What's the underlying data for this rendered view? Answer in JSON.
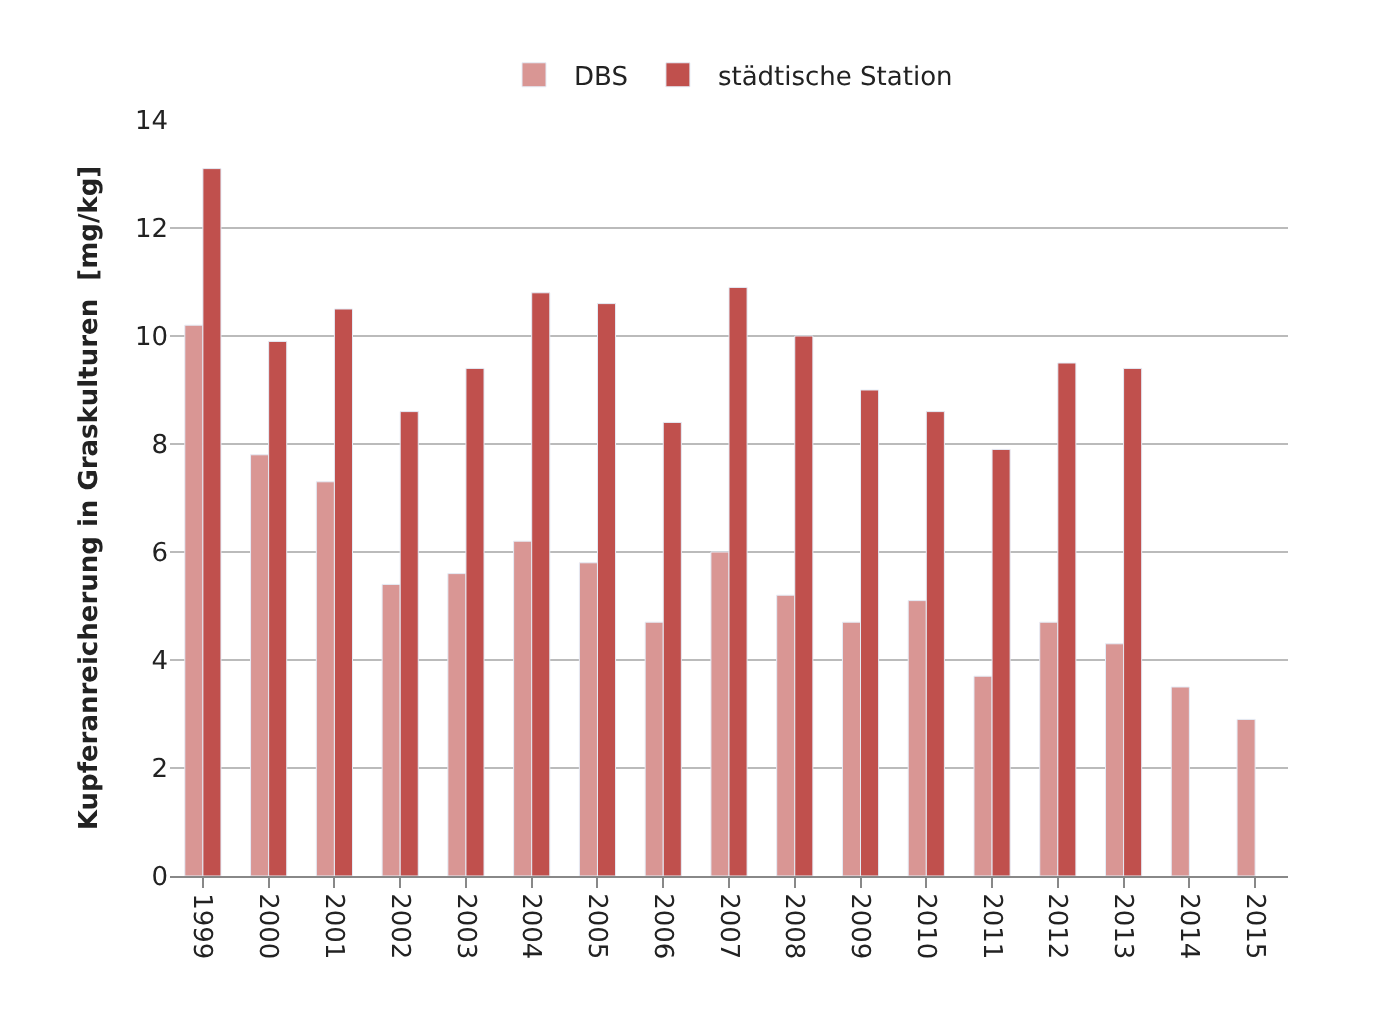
{
  "chart_data": {
    "type": "bar",
    "ylabel": "Kupferanreicherung in Graskulturen  [mg/kg]",
    "categories": [
      "1999",
      "2000",
      "2001",
      "2002",
      "2003",
      "2004",
      "2005",
      "2006",
      "2007",
      "2008",
      "2009",
      "2010",
      "2011",
      "2012",
      "2013",
      "2014",
      "2015"
    ],
    "series": [
      {
        "name": "DBS",
        "color": "#d99694",
        "values": [
          10.2,
          7.8,
          7.3,
          5.4,
          5.6,
          6.2,
          5.8,
          4.7,
          6.0,
          5.2,
          4.7,
          5.1,
          3.7,
          4.7,
          4.3,
          3.5,
          2.9
        ]
      },
      {
        "name": "städtische Station",
        "color": "#c0504d",
        "values": [
          13.1,
          9.9,
          10.5,
          8.6,
          9.4,
          10.8,
          10.6,
          8.4,
          10.9,
          10.0,
          9.0,
          8.6,
          7.9,
          9.5,
          9.4,
          null,
          null
        ]
      }
    ],
    "ylim": [
      0,
      14
    ],
    "yticks": [
      0,
      2,
      4,
      6,
      8,
      10,
      12,
      14
    ],
    "grid": "y",
    "legend": "top"
  }
}
